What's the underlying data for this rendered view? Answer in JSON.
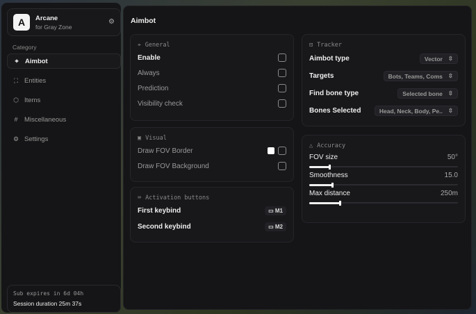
{
  "sidebar": {
    "brand": {
      "logo": "A",
      "name": "Arcane",
      "subtitle": "for Gray Zone"
    },
    "category_label": "Category",
    "items": [
      {
        "label": "Aimbot",
        "icon": "crosshair-icon",
        "active": true
      },
      {
        "label": "Entities",
        "icon": "user-scan-icon"
      },
      {
        "label": "Items",
        "icon": "box-icon"
      },
      {
        "label": "Miscellaneous",
        "icon": "hash-icon"
      },
      {
        "label": "Settings",
        "icon": "gear-icon"
      }
    ],
    "footer": {
      "expires": "Sub expires in 6d 04h",
      "session": "Session duration 25m 37s"
    }
  },
  "main": {
    "title": "Aimbot",
    "general": {
      "title": "General",
      "items": [
        {
          "label": "Enable",
          "checked": false
        },
        {
          "label": "Always",
          "checked": false
        },
        {
          "label": "Prediction",
          "checked": false
        },
        {
          "label": "Visibility check",
          "checked": false
        }
      ]
    },
    "visual": {
      "title": "Visual",
      "items": [
        {
          "label": "Draw FOV Border",
          "checked": false,
          "color": "#ffffff"
        },
        {
          "label": "Draw FOV Background",
          "checked": false
        }
      ]
    },
    "activation": {
      "title": "Activation buttons",
      "items": [
        {
          "label": "First keybind",
          "key": "M1"
        },
        {
          "label": "Second keybind",
          "key": "M2"
        }
      ]
    },
    "tracker": {
      "title": "Tracker",
      "items": [
        {
          "label": "Aimbot type",
          "value": "Vector"
        },
        {
          "label": "Targets",
          "value": "Bots, Teams, Coms"
        },
        {
          "label": "Find bone type",
          "value": "Selected bone"
        },
        {
          "label": "Bones Selected",
          "value": "Head, Neck, Body, Pe.."
        }
      ]
    },
    "accuracy": {
      "title": "Accuracy",
      "items": [
        {
          "label": "FOV size",
          "value": "50°",
          "fraction": 0.14
        },
        {
          "label": "Smoothness",
          "value": "15.0",
          "fraction": 0.16
        },
        {
          "label": "Max distance",
          "value": "250m",
          "fraction": 0.21
        }
      ]
    }
  }
}
